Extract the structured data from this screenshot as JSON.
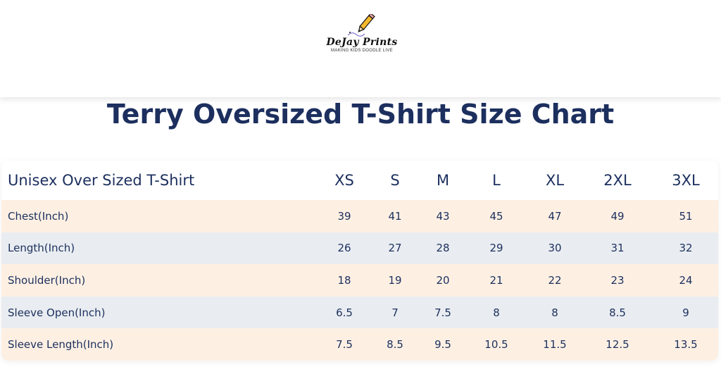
{
  "brand": {
    "name": "DeJay Prints",
    "tagline": "MAKING KIDS DOODLE LIVE"
  },
  "title": "Terry Oversized T-Shirt Size Chart",
  "table": {
    "header": [
      "Unisex Over Sized T-Shirt",
      "XS",
      "S",
      "M",
      "L",
      "XL",
      "2XL",
      "3XL"
    ],
    "rows": [
      [
        "Chest(Inch)",
        "39",
        "41",
        "43",
        "45",
        "47",
        "49",
        "51"
      ],
      [
        "Length(Inch)",
        "26",
        "27",
        "28",
        "29",
        "30",
        "31",
        "32"
      ],
      [
        "Shoulder(Inch)",
        "18",
        "19",
        "20",
        "21",
        "22",
        "23",
        "24"
      ],
      [
        "Sleeve Open(Inch)",
        "6.5",
        "7",
        "7.5",
        "8",
        "8",
        "8.5",
        "9"
      ],
      [
        "Sleeve Length(Inch)",
        "7.5",
        "8.5",
        "9.5",
        "10.5",
        "11.5",
        "12.5",
        "13.5"
      ]
    ]
  },
  "colors": {
    "text": "#1c2f5e",
    "row_peach": "#fdf0e3",
    "row_grey": "#e9edf1",
    "pencil_yellow": "#f5b82e"
  },
  "icons": {
    "logo": "pencil-icon"
  }
}
